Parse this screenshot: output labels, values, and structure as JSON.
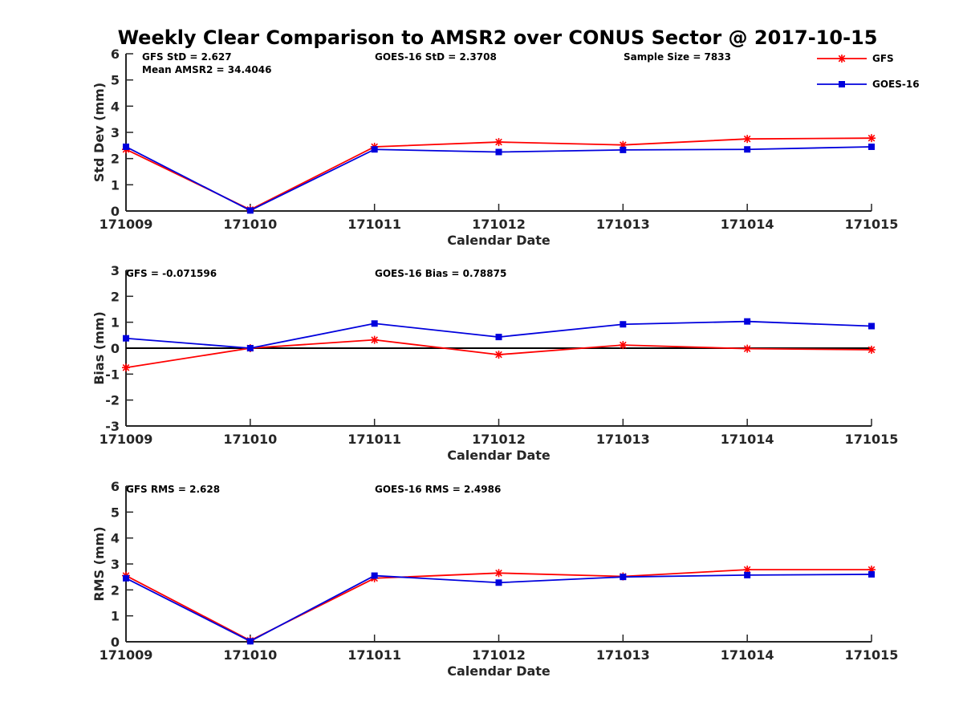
{
  "figure_title": "Weekly Clear Comparison to AMSR2 over CONUS Sector @ 2017-10-15",
  "colors": {
    "gfs": "#ff0000",
    "goes16": "#0000dd",
    "axis": "#262626",
    "zero_line": "#000000"
  },
  "legend": {
    "placement": "top-right",
    "entries": [
      "GFS",
      "GOES-16"
    ]
  },
  "chart_data": [
    {
      "type": "line",
      "title": "",
      "xlabel": "Calendar Date",
      "ylabel": "Std Dev (mm)",
      "categories": [
        "171009",
        "171010",
        "171011",
        "171012",
        "171013",
        "171014",
        "171015"
      ],
      "ylim": [
        0,
        6
      ],
      "yticks": [
        "0",
        "1",
        "2",
        "3",
        "4",
        "5",
        "6"
      ],
      "zero_line": false,
      "annotations": [
        "GFS StD = 2.627",
        "Mean AMSR2 = 34.4046",
        "GOES-16 StD = 2.3708",
        "Sample Size = 7833"
      ],
      "series": [
        {
          "name": "GFS",
          "marker": "asterisk",
          "values": [
            2.35,
            0.05,
            2.45,
            2.63,
            2.52,
            2.75,
            2.78
          ]
        },
        {
          "name": "GOES-16",
          "marker": "square",
          "values": [
            2.45,
            0.02,
            2.35,
            2.25,
            2.33,
            2.35,
            2.45
          ]
        }
      ]
    },
    {
      "type": "line",
      "title": "",
      "xlabel": "Calendar Date",
      "ylabel": "Bias (mm)",
      "categories": [
        "171009",
        "171010",
        "171011",
        "171012",
        "171013",
        "171014",
        "171015"
      ],
      "ylim": [
        -3,
        3
      ],
      "yticks": [
        "-3",
        "-2",
        "-1",
        "0",
        "1",
        "2",
        "3"
      ],
      "zero_line": true,
      "annotations": [
        "GFS = -0.071596",
        "GOES-16 Bias  = 0.78875"
      ],
      "series": [
        {
          "name": "GFS",
          "marker": "asterisk",
          "values": [
            -0.75,
            0.0,
            0.32,
            -0.25,
            0.12,
            -0.02,
            -0.06
          ]
        },
        {
          "name": "GOES-16",
          "marker": "square",
          "values": [
            0.38,
            0.0,
            0.95,
            0.43,
            0.92,
            1.03,
            0.85
          ]
        }
      ]
    },
    {
      "type": "line",
      "title": "",
      "xlabel": "Calendar Date",
      "ylabel": "RMS (mm)",
      "categories": [
        "171009",
        "171010",
        "171011",
        "171012",
        "171013",
        "171014",
        "171015"
      ],
      "ylim": [
        0,
        6
      ],
      "yticks": [
        "0",
        "1",
        "2",
        "3",
        "4",
        "5",
        "6"
      ],
      "zero_line": false,
      "annotations": [
        "GFS RMS = 2.628",
        "GOES-16 RMS = 2.4986"
      ],
      "series": [
        {
          "name": "GFS",
          "marker": "asterisk",
          "values": [
            2.55,
            0.05,
            2.45,
            2.65,
            2.52,
            2.78,
            2.78
          ]
        },
        {
          "name": "GOES-16",
          "marker": "square",
          "values": [
            2.45,
            0.02,
            2.55,
            2.28,
            2.5,
            2.57,
            2.6
          ]
        }
      ]
    }
  ]
}
